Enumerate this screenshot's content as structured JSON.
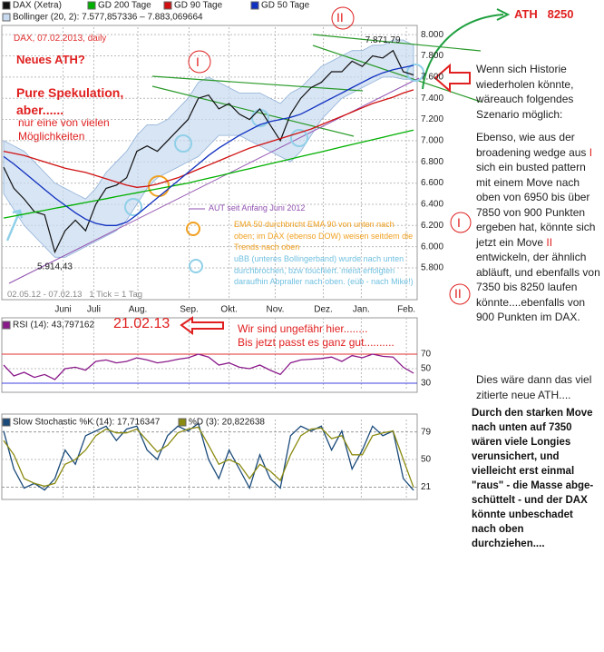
{
  "chart_data": [
    {
      "type": "line",
      "x": [
        0,
        1,
        2,
        3,
        4,
        5,
        6,
        7,
        8,
        9,
        10,
        11,
        12,
        13,
        14,
        15,
        16,
        17,
        18,
        19,
        20,
        21,
        22,
        23,
        24,
        25,
        26,
        27,
        28,
        29,
        30,
        31,
        32,
        33,
        34,
        35,
        36,
        37,
        38,
        39,
        40
      ],
      "xlim": [
        0,
        40
      ],
      "xticks": [
        {
          "value": 5.8,
          "label": "Juni"
        },
        {
          "value": 8.8,
          "label": "Juli"
        },
        {
          "value": 13.1,
          "label": "Aug."
        },
        {
          "value": 18.1,
          "label": "Sep."
        },
        {
          "value": 22.0,
          "label": "Okt."
        },
        {
          "value": 26.5,
          "label": "Nov."
        },
        {
          "value": 31.2,
          "label": "Dez."
        },
        {
          "value": 34.9,
          "label": "Jan."
        },
        {
          "value": 39.3,
          "label": "Feb."
        }
      ],
      "ylim": [
        5500,
        8070
      ],
      "yticks": [
        {
          "value": 8000,
          "label": "8.000"
        },
        {
          "value": 7800,
          "label": "7.800"
        },
        {
          "value": 7600,
          "label": "7.600"
        },
        {
          "value": 7400,
          "label": "7.400"
        },
        {
          "value": 7200,
          "label": "7.200"
        },
        {
          "value": 7000,
          "label": "7.000"
        },
        {
          "value": 6800,
          "label": "6.800"
        },
        {
          "value": 6600,
          "label": "6.600"
        },
        {
          "value": 6400,
          "label": "6.400"
        },
        {
          "value": 6200,
          "label": "6.200"
        },
        {
          "value": 6000,
          "label": "6.000"
        },
        {
          "value": 5800,
          "label": "5.800"
        }
      ],
      "grid": true,
      "band": {
        "name": "Bollinger (20, 2): 7.577,857336 – 7.883,069664",
        "color": "#c8daf0",
        "upper": [
          7000,
          6950,
          6900,
          6800,
          6700,
          6600,
          6550,
          6500,
          6450,
          6550,
          6700,
          6800,
          6900,
          7050,
          7150,
          7150,
          7200,
          7300,
          7400,
          7550,
          7600,
          7550,
          7500,
          7450,
          7450,
          7450,
          7400,
          7350,
          7450,
          7500,
          7600,
          7700,
          7750,
          7800,
          7850,
          7850,
          7900,
          7900,
          7950,
          7950,
          7900
        ],
        "lower": [
          6500,
          6350,
          6200,
          6100,
          6000,
          5900,
          5900,
          5950,
          6000,
          6050,
          6100,
          6150,
          6250,
          6400,
          6550,
          6650,
          6700,
          6750,
          6800,
          6850,
          6950,
          7050,
          7050,
          7050,
          7000,
          6950,
          6900,
          6850,
          6800,
          6900,
          7050,
          7200,
          7300,
          7400,
          7450,
          7500,
          7550,
          7600,
          7600,
          7580,
          7580
        ]
      },
      "series": [
        {
          "name": "DAX (Xetra)",
          "color": "#111111",
          "values": [
            6750,
            6550,
            6450,
            6330,
            6300,
            5950,
            6150,
            6250,
            6150,
            6400,
            6550,
            6580,
            6650,
            6900,
            6950,
            6900,
            7000,
            7100,
            7200,
            7400,
            7430,
            7300,
            7350,
            7250,
            7200,
            7300,
            7150,
            7000,
            7250,
            7400,
            7500,
            7550,
            7650,
            7650,
            7750,
            7700,
            7800,
            7780,
            7850,
            7650,
            7620
          ]
        },
        {
          "name": "GD 200 Tage",
          "color": "#00b000",
          "values": [
            6270,
            6288,
            6307,
            6325,
            6343,
            6362,
            6380,
            6398,
            6417,
            6435,
            6453,
            6472,
            6490,
            6508,
            6527,
            6545,
            6563,
            6582,
            6600,
            6623,
            6645,
            6668,
            6691,
            6714,
            6736,
            6759,
            6782,
            6805,
            6827,
            6850,
            6873,
            6895,
            6918,
            6941,
            6964,
            6986,
            7009,
            7032,
            7055,
            7077,
            7100
          ]
        },
        {
          "name": "GD 90 Tage",
          "color": "#d01010",
          "values": [
            6900,
            6880,
            6860,
            6830,
            6800,
            6770,
            6740,
            6720,
            6700,
            6670,
            6640,
            6610,
            6580,
            6560,
            6570,
            6590,
            6620,
            6650,
            6690,
            6730,
            6770,
            6810,
            6850,
            6890,
            6930,
            6960,
            6990,
            7020,
            7050,
            7080,
            7110,
            7150,
            7190,
            7230,
            7270,
            7310,
            7350,
            7380,
            7410,
            7450,
            7480
          ]
        },
        {
          "name": "GD 50 Tage",
          "color": "#1030c0",
          "values": [
            6850,
            6780,
            6700,
            6620,
            6540,
            6460,
            6390,
            6320,
            6260,
            6220,
            6200,
            6200,
            6230,
            6300,
            6380,
            6460,
            6540,
            6620,
            6700,
            6780,
            6860,
            6930,
            6990,
            7050,
            7100,
            7150,
            7180,
            7200,
            7220,
            7250,
            7300,
            7350,
            7400,
            7450,
            7500,
            7550,
            7600,
            7640,
            7670,
            7690,
            7710
          ]
        }
      ],
      "annotations": [
        {
          "x": 37,
          "value": 7871.79,
          "label": "7.871,79"
        },
        {
          "x": 5,
          "value": 5914.43,
          "label": "5.914,43"
        }
      ]
    },
    {
      "type": "line",
      "x": [
        0,
        1,
        2,
        3,
        4,
        5,
        6,
        7,
        8,
        9,
        10,
        11,
        12,
        13,
        14,
        15,
        16,
        17,
        18,
        19,
        20,
        21,
        22,
        23,
        24,
        25,
        26,
        27,
        28,
        29,
        30,
        31,
        32,
        33,
        34,
        35,
        36,
        37,
        38,
        39,
        40
      ],
      "xlim": [
        0,
        40
      ],
      "ylim": [
        20,
        120
      ],
      "yticks": [
        70,
        50,
        30
      ],
      "reference_lines": [
        {
          "value": 70,
          "color": "#e03030"
        },
        {
          "value": 30,
          "color": "#4040e0"
        }
      ],
      "series": [
        {
          "name": "RSI (14): 43,797162",
          "color": "#8a1a8a",
          "values": [
            55,
            40,
            45,
            38,
            42,
            35,
            50,
            52,
            48,
            60,
            62,
            58,
            60,
            65,
            62,
            58,
            60,
            63,
            65,
            70,
            66,
            55,
            58,
            52,
            50,
            55,
            48,
            42,
            58,
            62,
            63,
            64,
            66,
            60,
            68,
            65,
            70,
            67,
            66,
            52,
            43.8
          ]
        }
      ]
    },
    {
      "type": "line",
      "x": [
        0,
        1,
        2,
        3,
        4,
        5,
        6,
        7,
        8,
        9,
        10,
        11,
        12,
        13,
        14,
        15,
        16,
        17,
        18,
        19,
        20,
        21,
        22,
        23,
        24,
        25,
        26,
        27,
        28,
        29,
        30,
        31,
        32,
        33,
        34,
        35,
        36,
        37,
        38,
        39,
        40
      ],
      "xlim": [
        0,
        40
      ],
      "ylim": [
        10,
        92
      ],
      "yticks": [
        79,
        50,
        21
      ],
      "reference_lines": [
        {
          "value": 79,
          "color": "#999999"
        },
        {
          "value": 21,
          "color": "#999999"
        }
      ],
      "series": [
        {
          "name": "Slow Stochastic %K (14): 17,716347",
          "color": "#1a4a7a",
          "values": [
            80,
            40,
            20,
            25,
            18,
            30,
            60,
            45,
            75,
            80,
            85,
            70,
            82,
            85,
            60,
            50,
            75,
            85,
            80,
            88,
            50,
            30,
            60,
            40,
            20,
            55,
            30,
            20,
            75,
            85,
            80,
            85,
            60,
            80,
            40,
            60,
            85,
            75,
            80,
            30,
            17.7
          ]
        },
        {
          "name": "%D (3): 20,822638",
          "color": "#8a8a10",
          "values": [
            70,
            55,
            30,
            25,
            22,
            25,
            45,
            50,
            60,
            75,
            82,
            78,
            78,
            82,
            70,
            58,
            65,
            78,
            82,
            84,
            65,
            45,
            50,
            45,
            30,
            45,
            38,
            28,
            55,
            75,
            82,
            83,
            72,
            75,
            55,
            55,
            75,
            78,
            80,
            50,
            20.8
          ]
        }
      ]
    }
  ],
  "notes": {
    "header": "DAX, 07.02.2013,  daily",
    "question": "Neues ATH?",
    "speculation": "Pure Spekulation, aber......",
    "possibility": "nur eine von vielen Möglichkeiten",
    "wave_1": "I",
    "wave_2": "II",
    "wave_1_right": "I",
    "wave_2_right": "II",
    "ath_target": "ATH   8250",
    "aut": "AUT seit Anfang Juni 2012",
    "ema": "EMA 50 durchbricht EMA 90 von unten nach oben; im DAX (ebenso DOW) weisen seitdem die Trends nach oben",
    "ubb": "uBB (unteres Bollingerband) wurde nach unten durchbrochen, bzw touchiert. meist erfolgten daraufhin Abpraller nach oben. (eüb - nach Mike!)",
    "footer": "02.05.12 - 07.02.13   1 Tick = 1 Tag",
    "date_marker": "21.02.13",
    "here_1": "Wir sind ungefähr hier........",
    "here_2": "Bis jetzt passt es ganz gut.........."
  },
  "side_text": {
    "intro": "Wenn sich Historie wiederholen könnte, wäreauch folgendes Szenario möglich:",
    "scenario": [
      "Ebenso, wie aus der broadening  wedge aus ",
      "I",
      " sich ein busted pattern mit einem Move nach oben von 6950 bis über 7850 von 900 Punkten ergeben hat, könnte sich jetzt ein Move ",
      "II",
      "  entwickeln, der ähnlich abläuft, und ebenfalls von  7350 bis 8250 laufen könnte....ebenfalls von 900 Punkten im DAX."
    ],
    "conclusion": "Dies wäre dann das viel zitierte neue ATH....",
    "bold": "Durch den starken Move nach unten auf 7350 wären viele Longies verunsichert, und vielleicht erst einmal \"raus\" - die Masse abge- schüttelt - und der DAX könnte unbeschadet nach oben durchziehen...."
  }
}
